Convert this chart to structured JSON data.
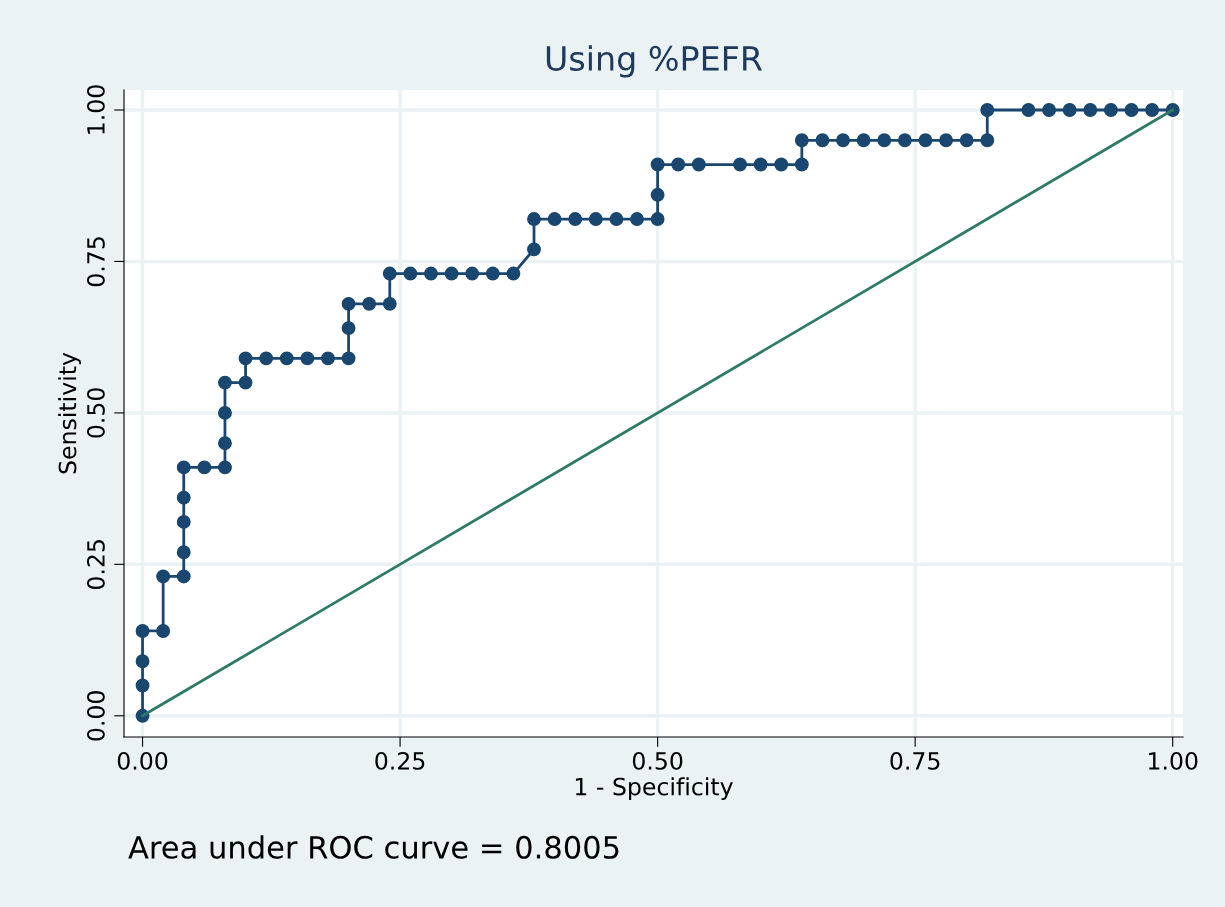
{
  "chart_data": {
    "type": "line",
    "title": "Using %PEFR",
    "xlabel": "1 - Specificity",
    "ylabel": "Sensitivity",
    "series": [
      {
        "color": "#1a476f",
        "marker": "circle",
        "x": [
          0,
          0,
          0,
          0,
          0.02,
          0.02,
          0.04,
          0.04,
          0.04,
          0.04,
          0.04,
          0.06,
          0.08,
          0.08,
          0.08,
          0.08,
          0.1,
          0.1,
          0.12,
          0.14,
          0.16,
          0.18,
          0.2,
          0.2,
          0.2,
          0.22,
          0.24,
          0.24,
          0.26,
          0.28,
          0.3,
          0.32,
          0.34,
          0.36,
          0.38,
          0.38,
          0.4,
          0.42,
          0.44,
          0.46,
          0.48,
          0.5,
          0.5,
          0.5,
          0.52,
          0.54,
          0.58,
          0.6,
          0.62,
          0.64,
          0.64,
          0.66,
          0.68,
          0.7,
          0.72,
          0.74,
          0.76,
          0.78,
          0.8,
          0.82,
          0.82,
          0.86,
          0.88,
          0.9,
          0.92,
          0.94,
          0.96,
          0.98,
          1.0
        ],
        "values": [
          0,
          0.05,
          0.09,
          0.14,
          0.14,
          0.23,
          0.23,
          0.27,
          0.32,
          0.36,
          0.41,
          0.41,
          0.41,
          0.45,
          0.5,
          0.55,
          0.55,
          0.59,
          0.59,
          0.59,
          0.59,
          0.59,
          0.59,
          0.64,
          0.68,
          0.68,
          0.68,
          0.73,
          0.73,
          0.73,
          0.73,
          0.73,
          0.73,
          0.73,
          0.77,
          0.82,
          0.82,
          0.82,
          0.82,
          0.82,
          0.82,
          0.82,
          0.86,
          0.91,
          0.91,
          0.91,
          0.91,
          0.91,
          0.91,
          0.91,
          0.95,
          0.95,
          0.95,
          0.95,
          0.95,
          0.95,
          0.95,
          0.95,
          0.95,
          0.95,
          1.0,
          1.0,
          1.0,
          1.0,
          1.0,
          1.0,
          1.0,
          1.0,
          1.0
        ]
      },
      {
        "color": "#2d7a66",
        "marker": "none",
        "x": [
          0,
          1
        ],
        "values": [
          0,
          1
        ]
      }
    ],
    "xlim": [
      -0.018,
      1.01
    ],
    "ylim": [
      -0.035,
      1.033
    ],
    "xticks": [
      {
        "value": 0,
        "label": "0.00"
      },
      {
        "value": 0.25,
        "label": "0.25"
      },
      {
        "value": 0.5,
        "label": "0.50"
      },
      {
        "value": 0.75,
        "label": "0.75"
      },
      {
        "value": 1,
        "label": "1.00"
      }
    ],
    "yticks": [
      {
        "value": 0,
        "label": "0.00"
      },
      {
        "value": 0.25,
        "label": "0.25"
      },
      {
        "value": 0.5,
        "label": "0.50"
      },
      {
        "value": 0.75,
        "label": "0.75"
      },
      {
        "value": 1,
        "label": "1.00"
      }
    ],
    "grid": true,
    "annotations": [
      "Area under ROC curve = 0.8005"
    ]
  }
}
